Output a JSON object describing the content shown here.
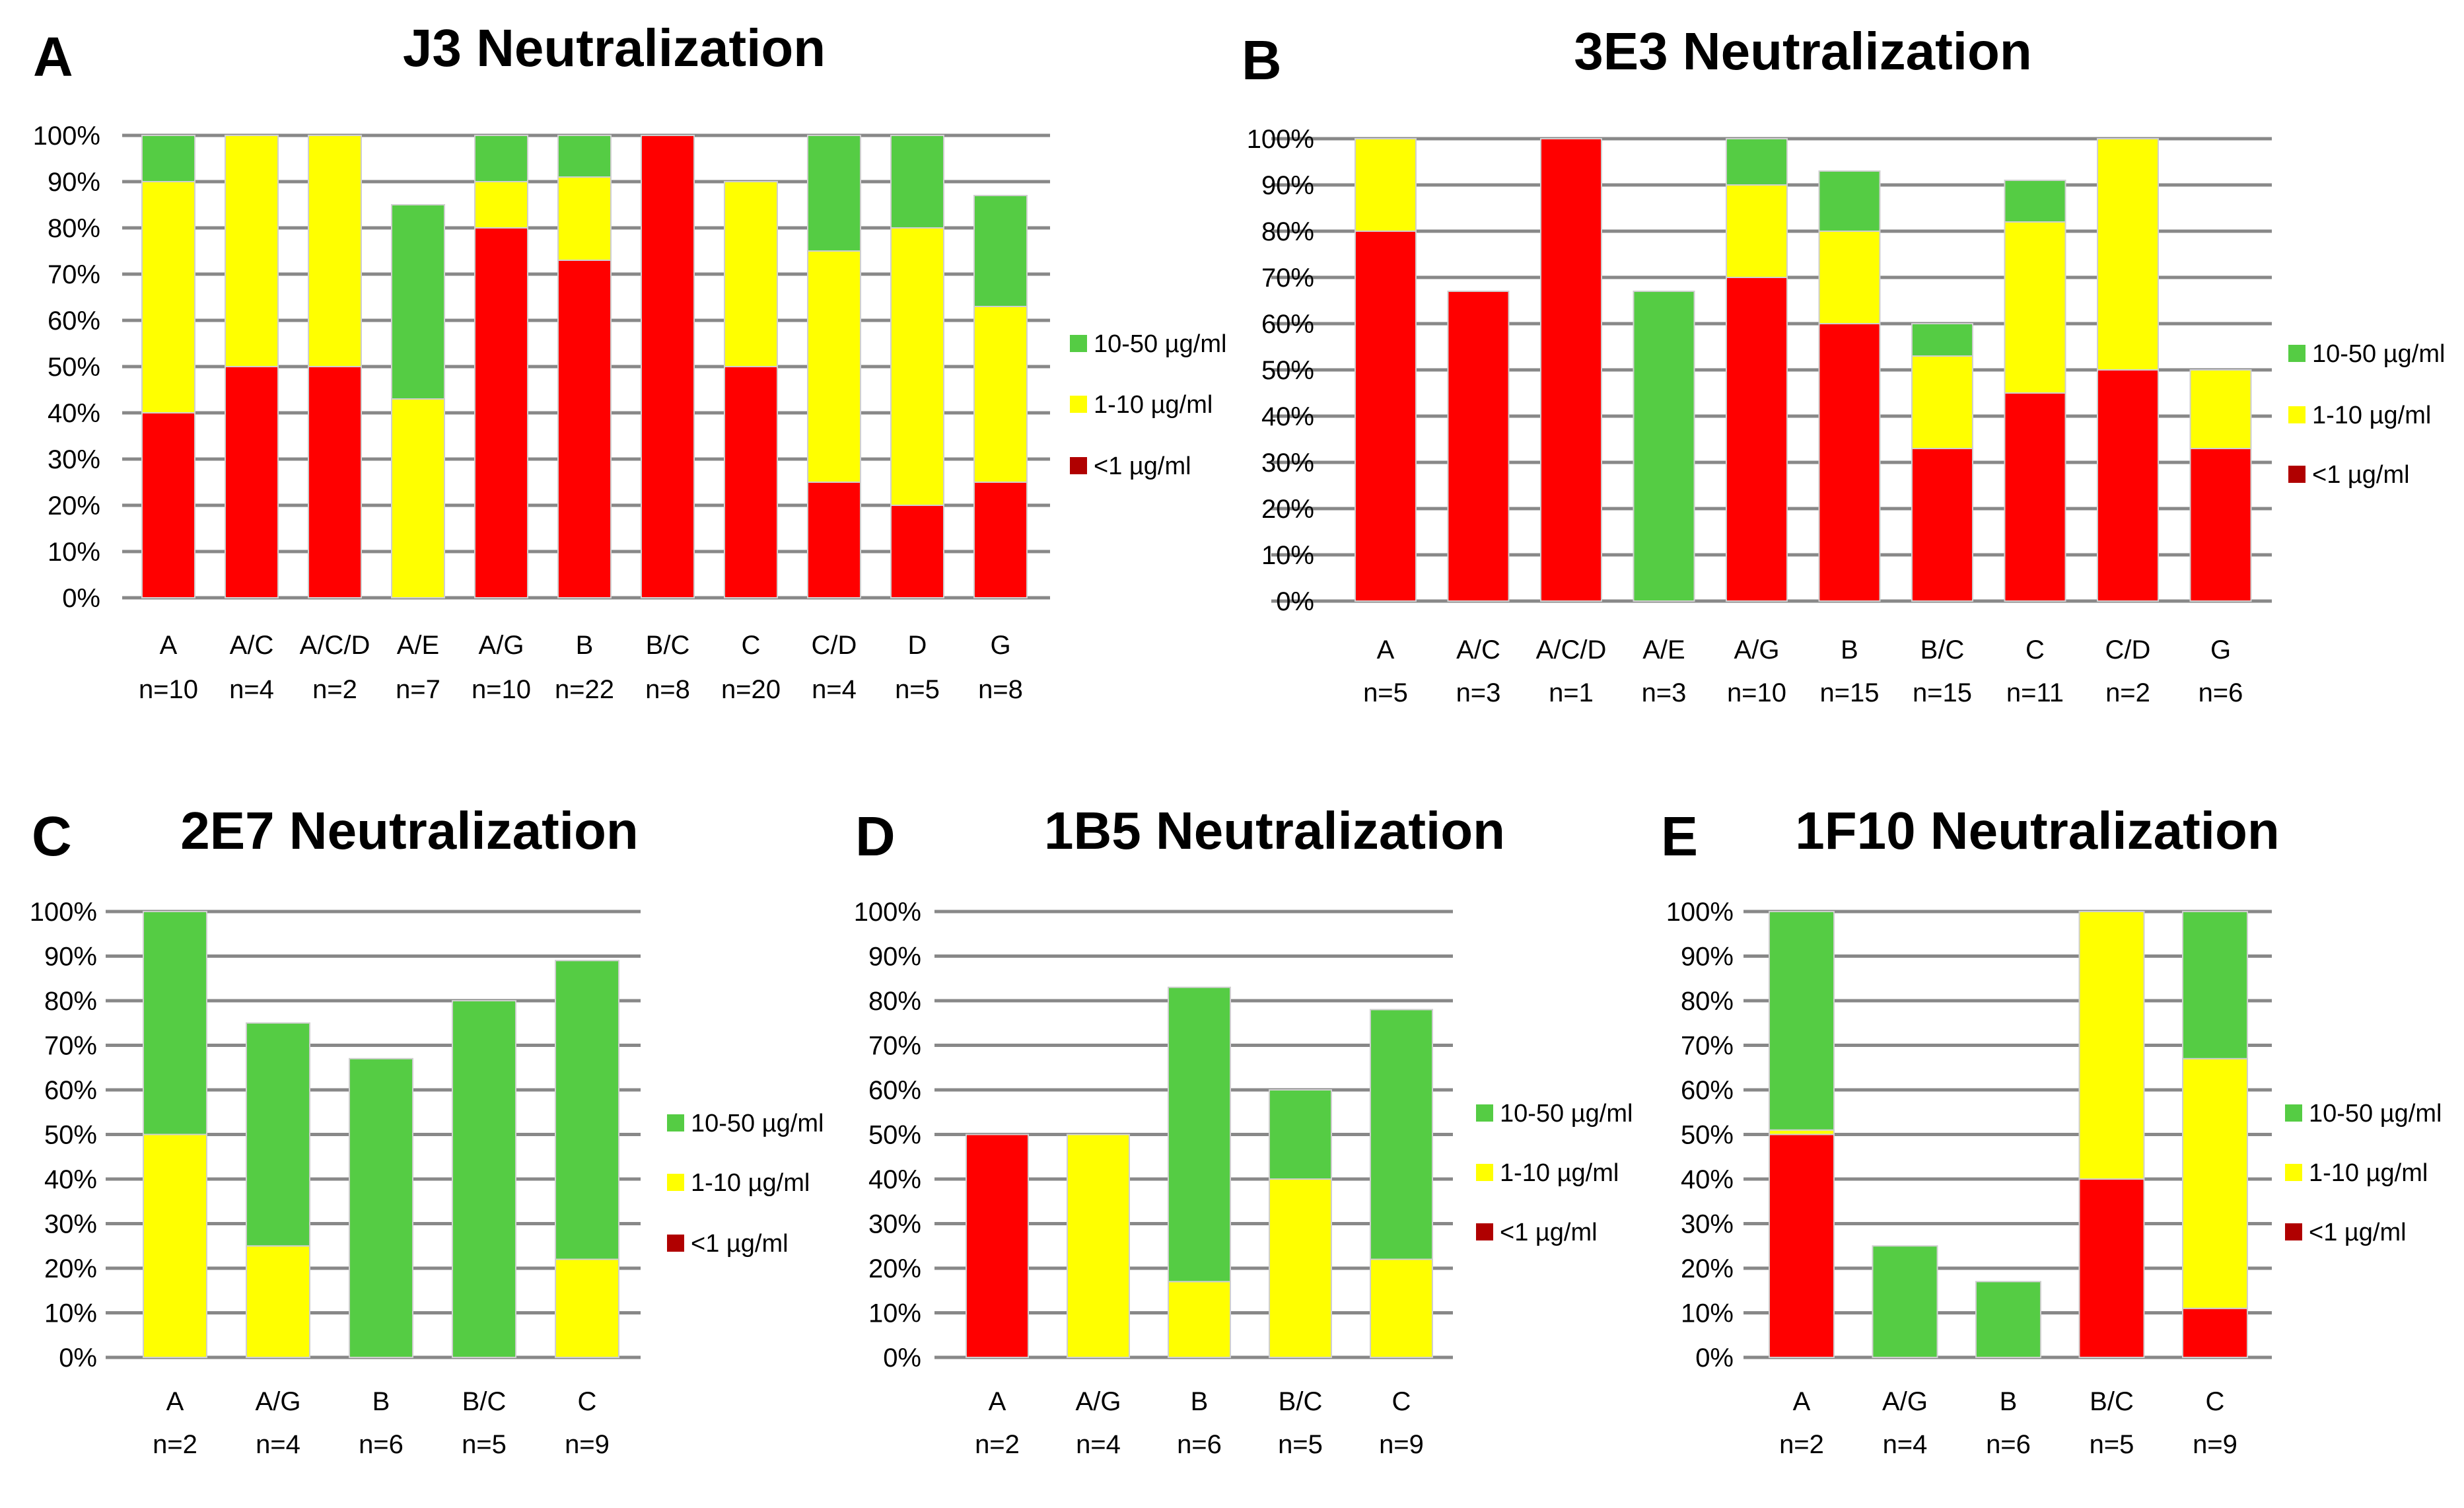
{
  "colors": {
    "low": "#ff0000",
    "mid": "#ffff00",
    "high": "#55cc44",
    "legend_low": "#b00000"
  },
  "chart_data": [
    {
      "id": "A",
      "panel_label": "A",
      "type": "bar",
      "stacked": true,
      "title": "J3 Neutralization",
      "ylim": [
        0,
        100
      ],
      "yticks": [
        "0%",
        "10%",
        "20%",
        "30%",
        "40%",
        "50%",
        "60%",
        "70%",
        "80%",
        "90%",
        "100%"
      ],
      "categories": [
        "A",
        "A/C",
        "A/C/D",
        "A/E",
        "A/G",
        "B",
        "B/C",
        "C",
        "C/D",
        "D",
        "G"
      ],
      "n_labels": [
        "n=10",
        "n=4",
        "n=2",
        "n=7",
        "n=10",
        "n=22",
        "n=8",
        "n=20",
        "n=4",
        "n=5",
        "n=8"
      ],
      "legend": [
        "10-50 µg/ml",
        "1-10 µg/ml",
        "<1 µg/ml"
      ],
      "series": [
        {
          "name": "<1 µg/ml",
          "color": "#ff0000",
          "values": [
            40,
            50,
            50,
            0,
            80,
            73,
            100,
            50,
            25,
            20,
            25
          ]
        },
        {
          "name": "1-10 µg/ml",
          "color": "#ffff00",
          "values": [
            50,
            50,
            50,
            43,
            10,
            18,
            0,
            40,
            50,
            60,
            38
          ]
        },
        {
          "name": "10-50 µg/ml",
          "color": "#55cc44",
          "values": [
            10,
            0,
            0,
            42,
            10,
            9,
            0,
            0,
            25,
            20,
            24
          ]
        }
      ]
    },
    {
      "id": "B",
      "panel_label": "B",
      "type": "bar",
      "stacked": true,
      "title": "3E3 Neutralization",
      "ylim": [
        0,
        100
      ],
      "yticks": [
        "0%",
        "10%",
        "20%",
        "30%",
        "40%",
        "50%",
        "60%",
        "70%",
        "80%",
        "90%",
        "100%"
      ],
      "categories": [
        "A",
        "A/C",
        "A/C/D",
        "A/E",
        "A/G",
        "B",
        "B/C",
        "C",
        "C/D",
        "G"
      ],
      "n_labels": [
        "n=5",
        "n=3",
        "n=1",
        "n=3",
        "n=10",
        "n=15",
        "n=15",
        "n=11",
        "n=2",
        "n=6"
      ],
      "legend": [
        "10-50 µg/ml",
        "1-10 µg/ml",
        "<1 µg/ml"
      ],
      "series": [
        {
          "name": "<1 µg/ml",
          "color": "#ff0000",
          "values": [
            80,
            67,
            100,
            0,
            70,
            60,
            33,
            45,
            50,
            33
          ]
        },
        {
          "name": "1-10 µg/ml",
          "color": "#ffff00",
          "values": [
            20,
            0,
            0,
            0,
            20,
            20,
            20,
            37,
            50,
            17
          ]
        },
        {
          "name": "10-50 µg/ml",
          "color": "#55cc44",
          "values": [
            0,
            0,
            0,
            67,
            10,
            13,
            7,
            9,
            0,
            0
          ]
        }
      ]
    },
    {
      "id": "C",
      "panel_label": "C",
      "type": "bar",
      "stacked": true,
      "title": "2E7 Neutralization",
      "ylim": [
        0,
        100
      ],
      "yticks": [
        "0%",
        "10%",
        "20%",
        "30%",
        "40%",
        "50%",
        "60%",
        "70%",
        "80%",
        "90%",
        "100%"
      ],
      "categories": [
        "A",
        "A/G",
        "B",
        "B/C",
        "C"
      ],
      "n_labels": [
        "n=2",
        "n=4",
        "n=6",
        "n=5",
        "n=9"
      ],
      "legend": [
        "10-50 µg/ml",
        "1-10 µg/ml",
        "<1 µg/ml"
      ],
      "series": [
        {
          "name": "<1 µg/ml",
          "color": "#ff0000",
          "values": [
            0,
            0,
            0,
            0,
            0
          ]
        },
        {
          "name": "1-10 µg/ml",
          "color": "#ffff00",
          "values": [
            50,
            25,
            0,
            0,
            22
          ]
        },
        {
          "name": "10-50 µg/ml",
          "color": "#55cc44",
          "values": [
            50,
            50,
            67,
            80,
            67
          ]
        }
      ]
    },
    {
      "id": "D",
      "panel_label": "D",
      "type": "bar",
      "stacked": true,
      "title": "1B5 Neutralization",
      "ylim": [
        0,
        100
      ],
      "yticks": [
        "0%",
        "10%",
        "20%",
        "30%",
        "40%",
        "50%",
        "60%",
        "70%",
        "80%",
        "90%",
        "100%"
      ],
      "categories": [
        "A",
        "A/G",
        "B",
        "B/C",
        "C"
      ],
      "n_labels": [
        "n=2",
        "n=4",
        "n=6",
        "n=5",
        "n=9"
      ],
      "legend": [
        "10-50 µg/ml",
        "1-10 µg/ml",
        "<1 µg/ml"
      ],
      "series": [
        {
          "name": "<1 µg/ml",
          "color": "#ff0000",
          "values": [
            50,
            0,
            0,
            0,
            0
          ]
        },
        {
          "name": "1-10 µg/ml",
          "color": "#ffff00",
          "values": [
            0,
            50,
            17,
            40,
            22
          ]
        },
        {
          "name": "10-50 µg/ml",
          "color": "#55cc44",
          "values": [
            0,
            0,
            66,
            20,
            56
          ]
        }
      ]
    },
    {
      "id": "E",
      "panel_label": "E",
      "type": "bar",
      "stacked": true,
      "title": "1F10 Neutralization",
      "ylim": [
        0,
        100
      ],
      "yticks": [
        "0%",
        "10%",
        "20%",
        "30%",
        "40%",
        "50%",
        "60%",
        "70%",
        "80%",
        "90%",
        "100%"
      ],
      "categories": [
        "A",
        "A/G",
        "B",
        "B/C",
        "C"
      ],
      "n_labels": [
        "n=2",
        "n=4",
        "n=6",
        "n=5",
        "n=9"
      ],
      "legend": [
        "10-50 µg/ml",
        "1-10 µg/ml",
        "<1 µg/ml"
      ],
      "series": [
        {
          "name": "<1 µg/ml",
          "color": "#ff0000",
          "values": [
            50,
            0,
            0,
            40,
            11
          ]
        },
        {
          "name": "1-10 µg/ml",
          "color": "#ffff00",
          "values": [
            1,
            0,
            0,
            60,
            56
          ]
        },
        {
          "name": "10-50 µg/ml",
          "color": "#55cc44",
          "values": [
            49,
            25,
            17,
            0,
            33
          ]
        }
      ]
    }
  ]
}
